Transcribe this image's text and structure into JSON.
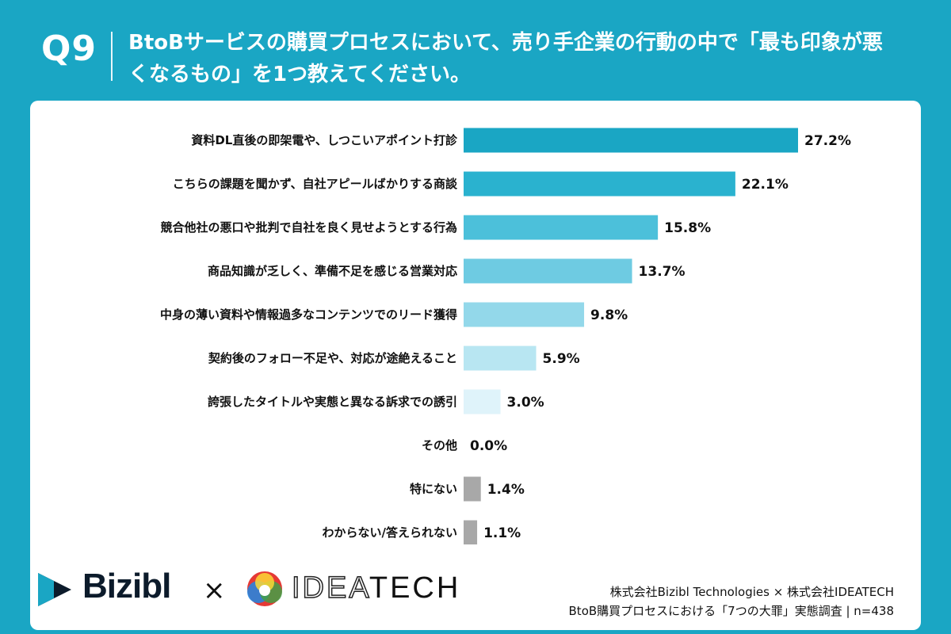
{
  "header": {
    "question_label": "Q9",
    "question_text": "BtoBサービスの購買プロセスにおいて、売り手企業の行動の中で「最も印象が悪くなるもの」を1つ教えてください。"
  },
  "colors": {
    "header_bg": "#1aa6c4",
    "card_bg": "#ffffff",
    "gray_bar": "#a8a8a8",
    "bar_shades": [
      "#1aa6c4",
      "#2ab2cf",
      "#4cc0da",
      "#6ecbe2",
      "#93d8ea",
      "#b8e6f2",
      "#dff3fa"
    ]
  },
  "chart_data": {
    "type": "bar",
    "orientation": "horizontal",
    "categories": [
      "資料DL直後の即架電や、しつこいアポイント打診",
      "こちらの課題を聞かず、自社アピールばかりする商談",
      "競合他社の悪口や批判で自社を良く見せようとする行為",
      "商品知識が乏しく、準備不足を感じる営業対応",
      "中身の薄い資料や情報過多なコンテンツでのリード獲得",
      "契約後のフォロー不足や、対応が途絶えること",
      "誇張したタイトルや実態と異なる訴求での誘引",
      "その他",
      "特にない",
      "わからない/答えられない"
    ],
    "values": [
      27.2,
      22.1,
      15.8,
      13.7,
      9.8,
      5.9,
      3.0,
      0.0,
      1.4,
      1.1
    ],
    "value_labels": [
      "27.2%",
      "22.1%",
      "15.8%",
      "13.7%",
      "9.8%",
      "5.9%",
      "3.0%",
      "0.0%",
      "1.4%",
      "1.1%"
    ],
    "bar_colors": [
      "#1aa6c4",
      "#2ab2cf",
      "#4cc0da",
      "#6ecbe2",
      "#93d8ea",
      "#b8e6f2",
      "#dff3fa",
      "#dff3fa",
      "#a8a8a8",
      "#a8a8a8"
    ],
    "xlim": [
      0,
      27.2
    ],
    "grid": false,
    "legend": "none"
  },
  "footer": {
    "logo_left": "Bizibl",
    "times": "×",
    "logo_right_a": "IDEA",
    "logo_right_b": "TECH",
    "credit_line1": "株式会社Bizibl Technologies × 株式会社IDEATECH",
    "credit_line2": "BtoB購買プロセスにおける「7つの大罪」実態調査 | n=438"
  }
}
